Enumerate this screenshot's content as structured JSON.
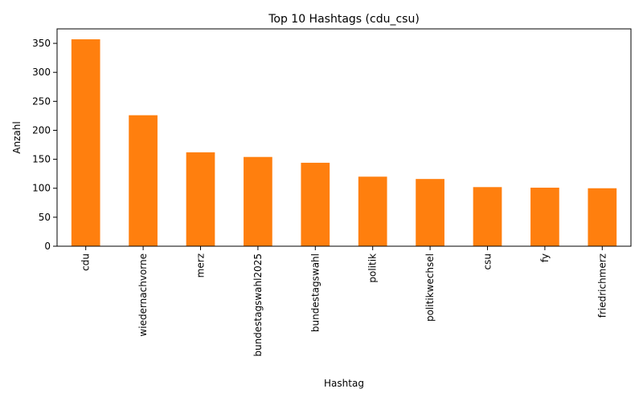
{
  "chart_data": {
    "type": "bar",
    "title": "Top 10 Hashtags (cdu_csu)",
    "xlabel": "Hashtag",
    "ylabel": "Anzahl",
    "categories": [
      "cdu",
      "wiedernachvorne",
      "merz",
      "bundestagswahl2025",
      "bundestagswahl",
      "politik",
      "politikwechsel",
      "csu",
      "fy",
      "friedrichmerz"
    ],
    "values": [
      357,
      226,
      162,
      154,
      144,
      120,
      116,
      102,
      101,
      100
    ],
    "ylim": [
      0,
      375
    ],
    "yticks": [
      0,
      50,
      100,
      150,
      200,
      250,
      300,
      350
    ],
    "bar_color": "#ff7f0e",
    "grid": false,
    "legend": "none"
  }
}
